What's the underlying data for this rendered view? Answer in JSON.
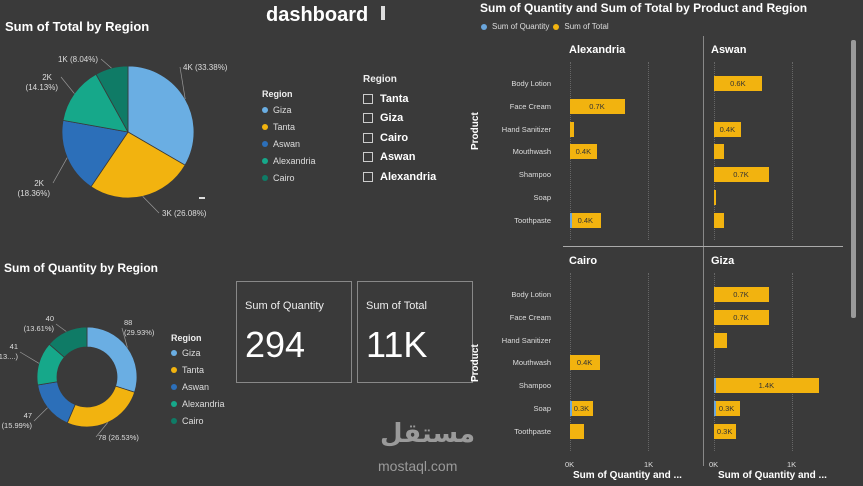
{
  "header": {
    "title": "dashboard"
  },
  "colors": {
    "giza": "#6aaee3",
    "tanta": "#f2b30f",
    "aswan": "#2c6fb9",
    "alexandria": "#16a88a",
    "cairo": "#0f7b66",
    "quantity": "#6aa6dc",
    "total": "#f2b30f"
  },
  "legend": {
    "title": "Region",
    "items": [
      "Giza",
      "Tanta",
      "Aswan",
      "Alexandria",
      "Cairo"
    ]
  },
  "slicer": {
    "title": "Region",
    "items": [
      "Tanta",
      "Giza",
      "Cairo",
      "Aswan",
      "Alexandria"
    ]
  },
  "cards": {
    "quantity": {
      "label": "Sum of Quantity",
      "value": "294"
    },
    "total": {
      "label": "Sum of Total",
      "value": "11K"
    }
  },
  "watermark": {
    "logo_text": "مستقل",
    "site": "mostaql.com"
  },
  "chart_data": [
    {
      "type": "pie",
      "title": "Sum of Total by Region",
      "categories": [
        "Giza",
        "Tanta",
        "Aswan",
        "Alexandria",
        "Cairo"
      ],
      "values": [
        33.38,
        26.08,
        18.36,
        14.13,
        8.04
      ],
      "data_labels": [
        "4K (33.38%)",
        "3K (26.08%)",
        "2K (18.36%)",
        "2K (14.13%)",
        "1K (8.04%)"
      ]
    },
    {
      "type": "pie",
      "subtype": "donut",
      "title": "Sum of Quantity by Region",
      "categories": [
        "Giza",
        "Tanta",
        "Aswan",
        "Alexandria",
        "Cairo"
      ],
      "values": [
        88,
        78,
        47,
        41,
        40
      ],
      "data_labels": [
        [
          "88",
          "(29.93%)"
        ],
        [
          "78 (26.53%)"
        ],
        [
          "47",
          "(15.99%)"
        ],
        [
          "41",
          "(13....)"
        ],
        [
          "40",
          "(13.61%)"
        ]
      ]
    },
    {
      "type": "bar",
      "orientation": "horizontal",
      "title": "Sum of Quantity and Sum of Total by Product and Region",
      "legend": [
        "Sum of Quantity",
        "Sum of Total"
      ],
      "ylabel": "Product",
      "xlabel": "Sum of Quantity and ...",
      "xlim": [
        0,
        1400
      ],
      "xticks": [
        "0K",
        "1K"
      ],
      "panels": [
        {
          "region": "Alexandria",
          "categories": [
            "Body Lotion",
            "Face Cream",
            "Hand Sanitizer",
            "Mouthwash",
            "Shampoo",
            "Soap",
            "Toothpaste"
          ],
          "totals": [
            0,
            700,
            50,
            350,
            0,
            0,
            400
          ],
          "quantities": [
            0,
            0,
            0,
            0,
            0,
            0,
            10
          ],
          "labels": [
            "",
            "0.7K",
            "",
            "0.4K",
            "",
            "",
            "0.4K"
          ]
        },
        {
          "region": "Aswan",
          "categories": [
            "Body Lotion",
            "Face Cream",
            "Hand Sanitizer",
            "Mouthwash",
            "Shampoo",
            "Soap",
            "Toothpaste"
          ],
          "totals": [
            620,
            0,
            350,
            130,
            700,
            20,
            130
          ],
          "quantities": [
            0,
            0,
            0,
            0,
            0,
            0,
            0
          ],
          "labels": [
            "0.6K",
            "",
            "0.4K",
            "",
            "0.7K",
            "",
            ""
          ]
        },
        {
          "region": "Cairo",
          "categories": [
            "Body Lotion",
            "Face Cream",
            "Hand Sanitizer",
            "Mouthwash",
            "Shampoo",
            "Soap",
            "Toothpaste"
          ],
          "totals": [
            0,
            0,
            0,
            380,
            0,
            300,
            180
          ],
          "quantities": [
            0,
            0,
            0,
            0,
            0,
            10,
            0
          ],
          "labels": [
            "",
            "",
            "",
            "0.4K",
            "",
            "0.3K",
            ""
          ]
        },
        {
          "region": "Giza",
          "categories": [
            "Body Lotion",
            "Face Cream",
            "Hand Sanitizer",
            "Mouthwash",
            "Shampoo",
            "Soap",
            "Toothpaste"
          ],
          "totals": [
            700,
            700,
            170,
            0,
            1350,
            330,
            280
          ],
          "quantities": [
            0,
            0,
            0,
            0,
            20,
            10,
            0
          ],
          "labels": [
            "0.7K",
            "0.7K",
            "",
            "",
            "1.4K",
            "0.3K",
            "0.3K"
          ]
        }
      ]
    }
  ]
}
